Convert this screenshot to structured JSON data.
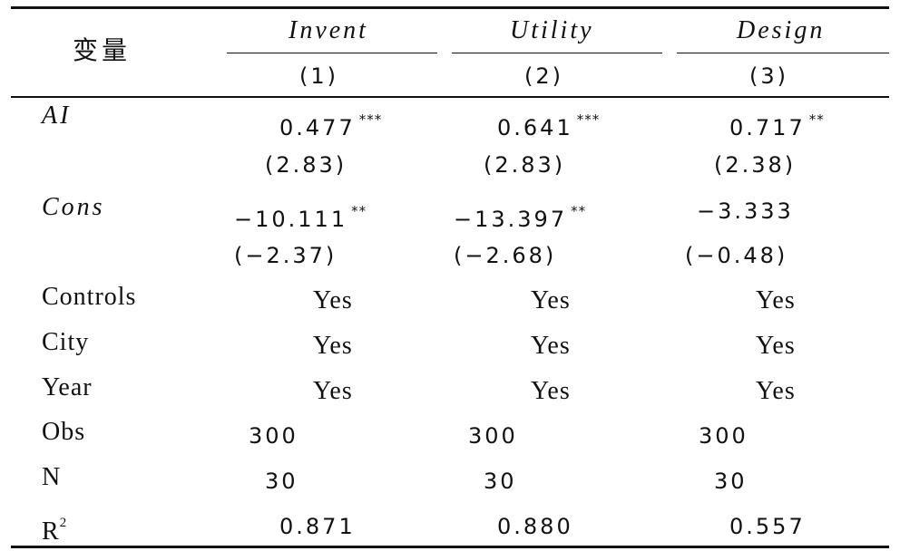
{
  "header": {
    "var_label": "变量",
    "columns": [
      {
        "name": "Invent",
        "index": "(1)"
      },
      {
        "name": "Utility",
        "index": "(2)"
      },
      {
        "name": "Design",
        "index": "(3)"
      }
    ]
  },
  "rows": [
    {
      "label": "AI",
      "cells": [
        {
          "v": "0.477",
          "s": "***"
        },
        {
          "v": "0.641",
          "s": "***"
        },
        {
          "v": "0.717",
          "s": "**"
        }
      ]
    },
    {
      "label": "",
      "cells": [
        {
          "v": "(2.83)",
          "s": ""
        },
        {
          "v": "(2.83)",
          "s": ""
        },
        {
          "v": "(2.38)",
          "s": ""
        }
      ]
    },
    {
      "label": "Cons",
      "cells": [
        {
          "v": "−10.111",
          "s": "**"
        },
        {
          "v": "−13.397",
          "s": "**"
        },
        {
          "v": "−3.333",
          "s": ""
        }
      ]
    },
    {
      "label": "",
      "cells": [
        {
          "v": "(−2.37)",
          "s": ""
        },
        {
          "v": "(−2.68)",
          "s": ""
        },
        {
          "v": "(−0.48)",
          "s": ""
        }
      ]
    },
    {
      "label": "Controls",
      "cells": [
        {
          "v": "Yes",
          "s": ""
        },
        {
          "v": "Yes",
          "s": ""
        },
        {
          "v": "Yes",
          "s": ""
        }
      ]
    },
    {
      "label": "City",
      "cells": [
        {
          "v": "Yes",
          "s": ""
        },
        {
          "v": "Yes",
          "s": ""
        },
        {
          "v": "Yes",
          "s": ""
        }
      ]
    },
    {
      "label": "Year",
      "cells": [
        {
          "v": "Yes",
          "s": ""
        },
        {
          "v": "Yes",
          "s": ""
        },
        {
          "v": "Yes",
          "s": ""
        }
      ]
    },
    {
      "label": "Obs",
      "cells": [
        {
          "v": "300",
          "s": ""
        },
        {
          "v": "300",
          "s": ""
        },
        {
          "v": "300",
          "s": ""
        }
      ]
    },
    {
      "label": "N",
      "cells": [
        {
          "v": "30",
          "s": ""
        },
        {
          "v": "30",
          "s": ""
        },
        {
          "v": "30",
          "s": ""
        }
      ]
    },
    {
      "label": "R",
      "label_sup": "2",
      "cells": [
        {
          "v": "0.871",
          "s": ""
        },
        {
          "v": "0.880",
          "s": ""
        },
        {
          "v": "0.557",
          "s": ""
        }
      ]
    }
  ]
}
